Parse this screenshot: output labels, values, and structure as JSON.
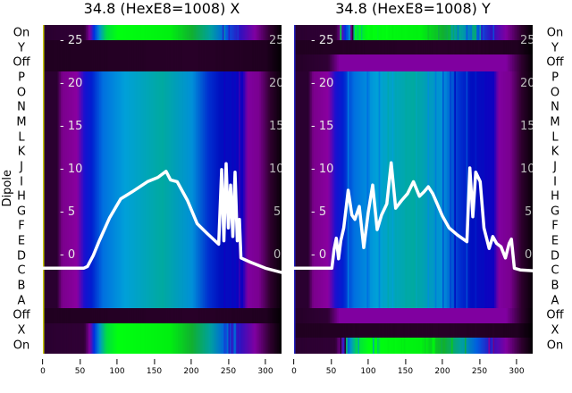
{
  "chart_data": [
    {
      "type": "heatmap",
      "title": "34.8 (HexE8=1008) X",
      "ylabel": "Dipole",
      "row_labels": [
        "On",
        "Y",
        "Off",
        "P",
        "O",
        "N",
        "M",
        "L",
        "K",
        "J",
        "I",
        "H",
        "G",
        "F",
        "E",
        "D",
        "C",
        "B",
        "A",
        "Off",
        "X",
        "On"
      ],
      "xticks": [
        0,
        50,
        100,
        150,
        200,
        250,
        300
      ],
      "xlim": [
        0,
        322
      ],
      "overlay_yticks": [
        0,
        5,
        10,
        15,
        20,
        25
      ],
      "overlay_ylim": [
        -2.5,
        26
      ],
      "overlay_line": {
        "x": [
          0,
          40,
          55,
          60,
          68,
          76,
          90,
          105,
          120,
          141,
          155,
          166,
          172,
          181,
          195,
          208,
          222,
          237,
          241,
          244,
          247,
          250,
          253,
          256,
          259,
          262,
          265,
          267,
          280,
          300,
          322
        ],
        "y": [
          -1.7,
          -1.7,
          -1.7,
          -1.5,
          -0.2,
          1.5,
          4.2,
          6.4,
          7.2,
          8.4,
          8.9,
          9.6,
          8.6,
          8.4,
          6.2,
          3.5,
          2.3,
          1.1,
          9.8,
          1.5,
          10.5,
          3,
          8,
          2,
          9.5,
          1.5,
          4,
          -0.5,
          -1,
          -1.7,
          -2.2
        ]
      }
    },
    {
      "type": "heatmap",
      "title": "34.8 (HexE8=1008) Y",
      "row_labels": [
        "On",
        "Y",
        "Off",
        "P",
        "O",
        "N",
        "M",
        "L",
        "K",
        "J",
        "I",
        "H",
        "G",
        "F",
        "E",
        "D",
        "C",
        "B",
        "A",
        "Off",
        "X",
        "On"
      ],
      "xticks": [
        0,
        50,
        100,
        150,
        200,
        250,
        300
      ],
      "xlim": [
        0,
        322
      ],
      "overlay_yticks": [
        0,
        5,
        10,
        15,
        20,
        25
      ],
      "overlay_ylim": [
        -2.5,
        26
      ],
      "overlay_line": {
        "x": [
          0,
          45,
          51,
          54,
          57,
          60,
          63,
          67,
          73,
          78,
          82,
          88,
          94,
          100,
          106,
          112,
          118,
          125,
          131,
          137,
          145,
          153,
          161,
          169,
          175,
          181,
          187,
          193,
          200,
          209,
          220,
          233,
          237,
          241,
          245,
          251,
          256,
          263,
          268,
          273,
          279,
          285,
          290,
          293,
          297,
          305,
          322
        ],
        "y": [
          -1.7,
          -1.7,
          -1.7,
          0.5,
          1.8,
          -0.6,
          1.5,
          3,
          7.4,
          4.5,
          4,
          5.5,
          0.7,
          4.8,
          8,
          2.8,
          4.5,
          5.8,
          10.6,
          5.3,
          6.2,
          7,
          8.4,
          6.7,
          7.2,
          7.8,
          7,
          5.8,
          4.4,
          3,
          2.2,
          1.4,
          10,
          4.3,
          9.5,
          8.4,
          3,
          0.6,
          2,
          1.2,
          0.8,
          -0.5,
          1.2,
          1.7,
          -1.7,
          -1.9,
          -2
        ]
      }
    }
  ]
}
